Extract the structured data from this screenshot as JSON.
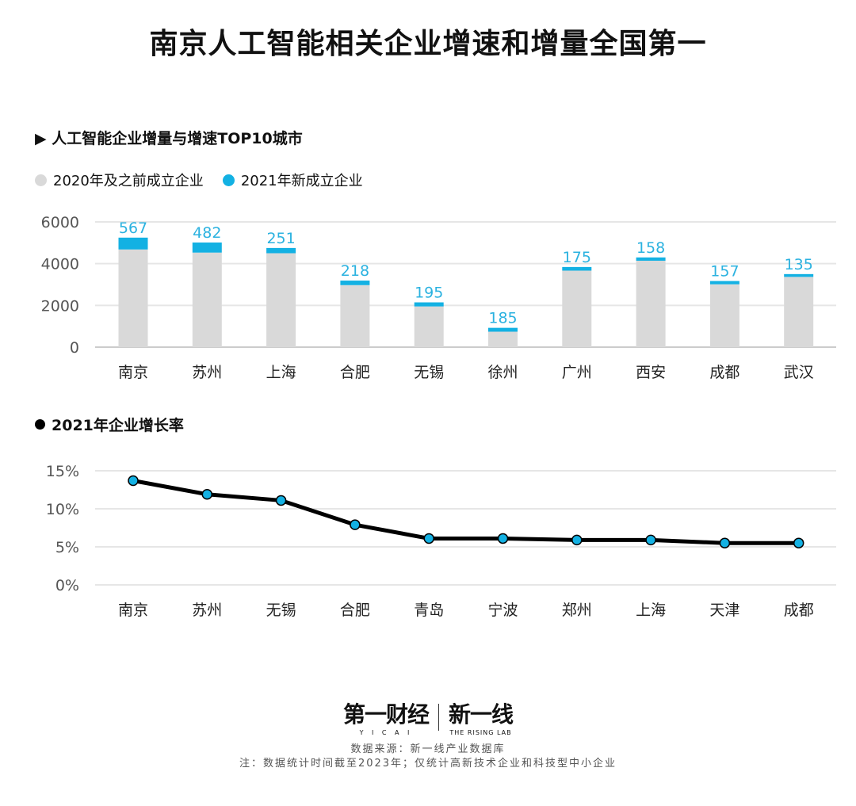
{
  "title": "南京人工智能相关企业增速和增量全国第一",
  "chart_data": [
    {
      "type": "bar",
      "stacked": true,
      "title": "▶ 人工智能企业增量与增速TOP10城市",
      "categories": [
        "南京",
        "苏州",
        "上海",
        "合肥",
        "无锡",
        "徐州",
        "广州",
        "西安",
        "成都",
        "武汉"
      ],
      "series": [
        {
          "name": "2020年及之前成立企业",
          "color": "#d9d9d9",
          "values": [
            4680,
            4530,
            4500,
            2970,
            1950,
            740,
            3665,
            4140,
            3010,
            3365
          ]
        },
        {
          "name": "2021年新成立企业",
          "color": "#13b1e3",
          "values": [
            567,
            482,
            251,
            218,
            195,
            185,
            175,
            158,
            157,
            135
          ]
        }
      ],
      "data_labels": [
        "567",
        "482",
        "251",
        "218",
        "195",
        "185",
        "175",
        "158",
        "157",
        "135"
      ],
      "ylim": [
        0,
        6000
      ],
      "yticks": [
        "0",
        "2000",
        "4000",
        "6000"
      ],
      "grid": true,
      "legend": "top-left"
    },
    {
      "type": "line",
      "title": "2021年企业增长率",
      "categories": [
        "南京",
        "苏州",
        "无锡",
        "合肥",
        "青岛",
        "宁波",
        "郑州",
        "上海",
        "天津",
        "成都"
      ],
      "values": [
        13.7,
        11.9,
        11.1,
        7.9,
        6.1,
        6.1,
        5.9,
        5.9,
        5.5,
        5.5
      ],
      "ylim": [
        0,
        15
      ],
      "yticks": [
        "0%",
        "5%",
        "10%",
        "15%"
      ],
      "line_color": "#000000",
      "marker_color": "#13b1e3",
      "grid": true
    }
  ],
  "logo": {
    "left": "第一财经",
    "left_sub": "Y I C A I",
    "right": "新一线",
    "right_sub": "THE RISING LAB"
  },
  "source": "数据来源：新一线产业数据库",
  "note": "注：数据统计时间截至2023年；仅统计高新技术企业和科技型中小企业"
}
